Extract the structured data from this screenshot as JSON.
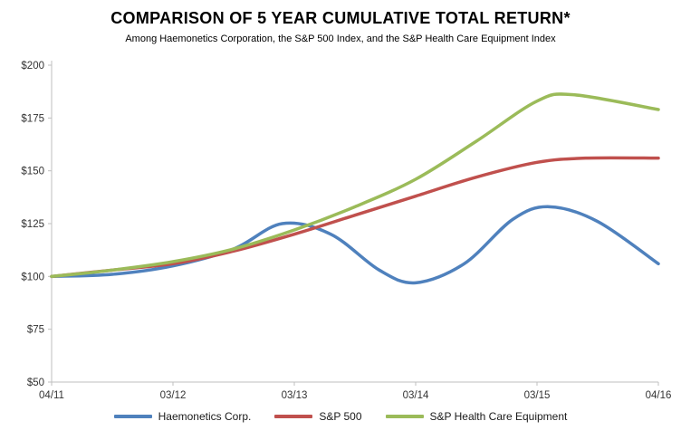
{
  "chart_data": {
    "type": "line",
    "title": "COMPARISON OF 5 YEAR CUMULATIVE TOTAL RETURN*",
    "subtitle": "Among Haemonetics Corporation, the S&P 500 Index, and the S&P Health Care Equipment Index",
    "x_tick_labels": [
      "04/11",
      "03/12",
      "03/13",
      "03/14",
      "03/15",
      "04/16"
    ],
    "y_ticks": [
      50,
      75,
      100,
      125,
      150,
      175,
      200
    ],
    "y_tick_prefix": "$",
    "ylim": [
      50,
      200
    ],
    "grid": false,
    "legend_position": "bottom",
    "axis_color": "#bfbfbf",
    "series": [
      {
        "name": "Haemonetics Corp.",
        "color": "#4F81BD",
        "values_at_ticks": [
          100,
          105,
          124,
          97,
          132,
          106
        ],
        "points": [
          [
            0,
            100
          ],
          [
            0.5,
            101
          ],
          [
            1,
            105
          ],
          [
            1.5,
            113
          ],
          [
            1.9,
            125
          ],
          [
            2.3,
            120
          ],
          [
            2.7,
            103
          ],
          [
            3,
            97
          ],
          [
            3.4,
            106
          ],
          [
            3.8,
            127
          ],
          [
            4.1,
            133
          ],
          [
            4.5,
            126
          ],
          [
            5,
            106
          ]
        ]
      },
      {
        "name": "S&P 500",
        "color": "#C0504D",
        "values_at_ticks": [
          100,
          106,
          120,
          138,
          154,
          156
        ],
        "points": [
          [
            0,
            100
          ],
          [
            0.5,
            103
          ],
          [
            1,
            106
          ],
          [
            1.5,
            112
          ],
          [
            2,
            120
          ],
          [
            2.5,
            129
          ],
          [
            3,
            138
          ],
          [
            3.5,
            147
          ],
          [
            4,
            154
          ],
          [
            4.4,
            156
          ],
          [
            5,
            156
          ]
        ]
      },
      {
        "name": "S&P Health Care Equipment",
        "color": "#9BBB59",
        "values_at_ticks": [
          100,
          107,
          122,
          146,
          183,
          179
        ],
        "points": [
          [
            0,
            100
          ],
          [
            0.5,
            103
          ],
          [
            1,
            107
          ],
          [
            1.5,
            113
          ],
          [
            2,
            122
          ],
          [
            2.5,
            133
          ],
          [
            3,
            146
          ],
          [
            3.5,
            164
          ],
          [
            4,
            183
          ],
          [
            4.3,
            186
          ],
          [
            5,
            179
          ]
        ]
      }
    ]
  }
}
